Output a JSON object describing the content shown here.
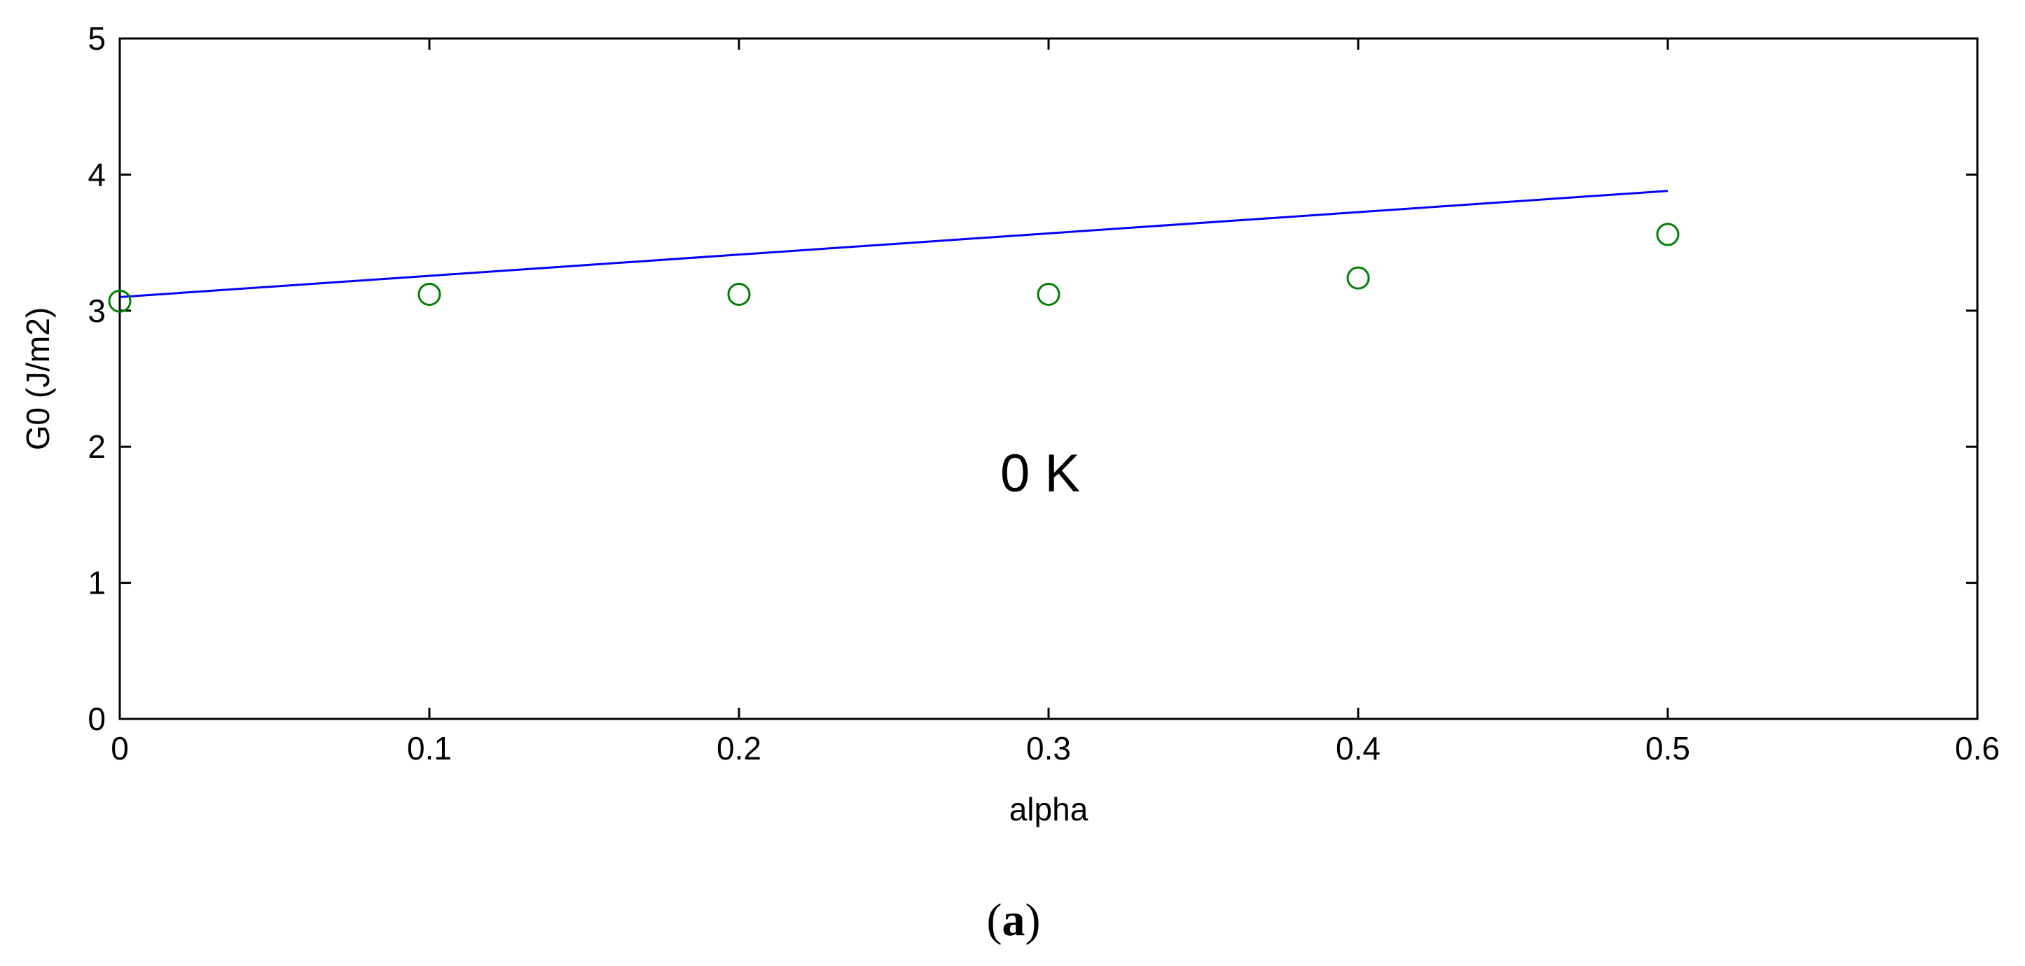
{
  "chart_data": {
    "type": "line",
    "xlabel": "alpha",
    "ylabel": "G0 (J/m2)",
    "xlim": [
      0,
      0.6
    ],
    "ylim": [
      0,
      5
    ],
    "xticks": [
      0,
      0.1,
      0.2,
      0.3,
      0.4,
      0.5,
      0.6
    ],
    "xtick_labels": [
      "0",
      "0.1",
      "0.2",
      "0.3",
      "0.4",
      "0.5",
      "0.6"
    ],
    "yticks": [
      0,
      1,
      2,
      3,
      4,
      5
    ],
    "ytick_labels": [
      "0",
      "1",
      "2",
      "3",
      "4",
      "5"
    ],
    "grid": false,
    "annotation": "0 K",
    "series": [
      {
        "style": "line",
        "color": "#0000ff",
        "x": [
          0,
          0.5
        ],
        "y": [
          3.1,
          3.88
        ]
      },
      {
        "style": "markers",
        "marker": "open-circle",
        "color": "#008000",
        "x": [
          0,
          0.1,
          0.2,
          0.3,
          0.4,
          0.5
        ],
        "y": [
          3.07,
          3.12,
          3.12,
          3.12,
          3.24,
          3.56
        ]
      }
    ]
  },
  "caption": {
    "open": "(",
    "letter": "a",
    "close": ")"
  }
}
